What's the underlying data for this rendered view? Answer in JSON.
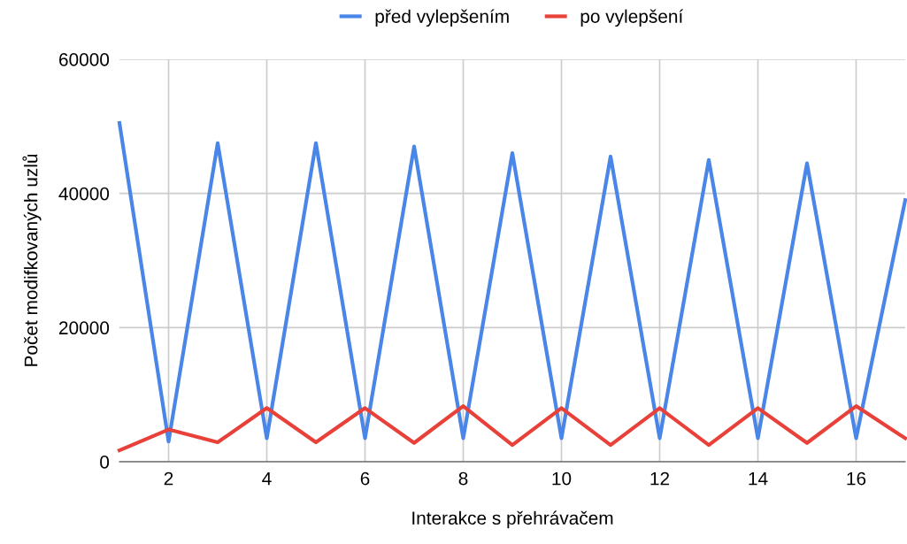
{
  "chart_data": {
    "type": "line",
    "xlabel": "Interakce s přehrávačem",
    "ylabel": "Počet modifkovaných uzlů",
    "x": [
      1,
      2,
      3,
      4,
      5,
      6,
      7,
      8,
      9,
      10,
      11,
      12,
      13,
      14,
      15,
      16,
      17
    ],
    "series": [
      {
        "name": "před vylepšením",
        "color": "#4a86e8",
        "values": [
          50500,
          3000,
          47500,
          3500,
          47500,
          3500,
          47000,
          3500,
          46000,
          3500,
          45500,
          3500,
          45000,
          3500,
          44500,
          3500,
          39000
        ]
      },
      {
        "name": "po vylepšení",
        "color": "#e8413a",
        "values": [
          1700,
          4800,
          2900,
          8000,
          2900,
          8000,
          2800,
          8300,
          2500,
          8000,
          2500,
          8000,
          2500,
          8000,
          2800,
          8300,
          3500
        ]
      }
    ],
    "xlim": [
      1,
      17
    ],
    "xticks": [
      2,
      4,
      6,
      8,
      10,
      12,
      14,
      16
    ],
    "ylim": [
      0,
      60000
    ],
    "yticks": [
      0,
      20000,
      40000,
      60000
    ],
    "grid": true,
    "legend": "top",
    "marker": "none",
    "line_style": "solid"
  }
}
